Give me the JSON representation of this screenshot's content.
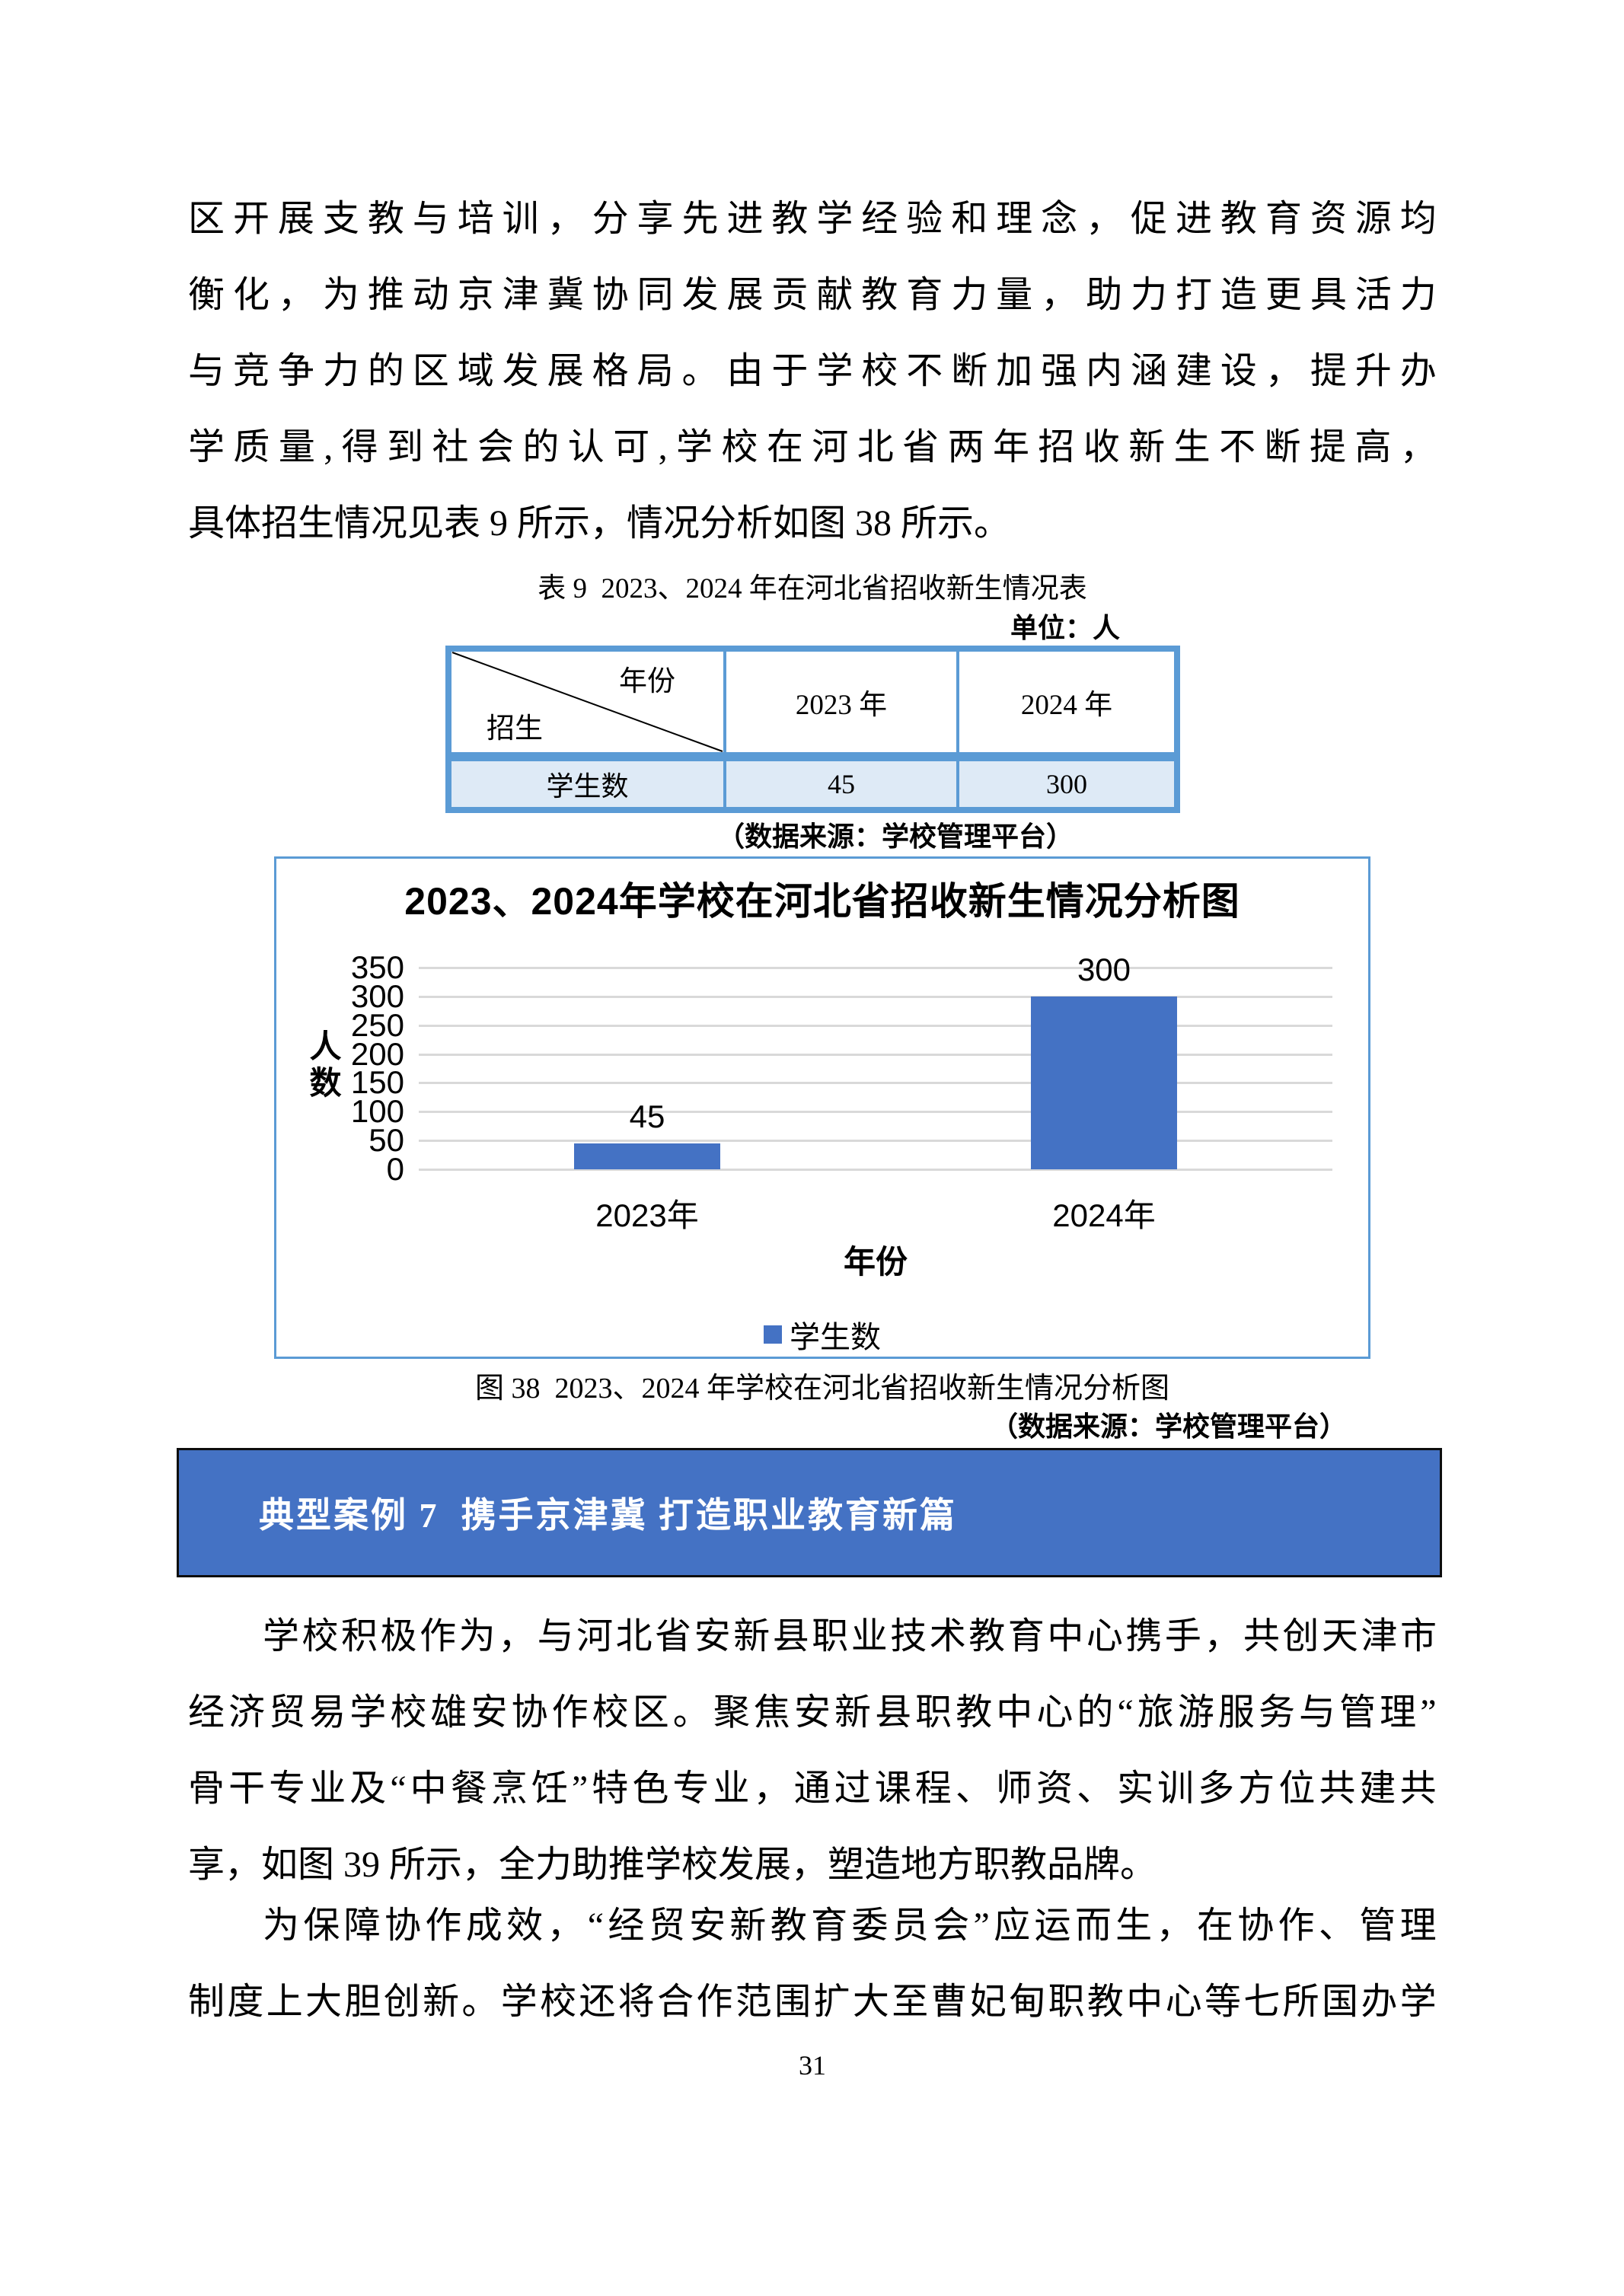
{
  "paragraphs": {
    "p1": {
      "lines": [
        "区开展支教与培训，分享先进教学经验和理念，促进教育资源均",
        "衡化，为推动京津冀协同发展贡献教育力量，助力打造更具活力",
        "与竞争力的区域发展格局。由于学校不断加强内涵建设，提升办",
        "学质量,得到社会的认可,学校在河北省两年招收新生不断提高，",
        "具体招生情况见表 9 所示，情况分析如图 38 所示。"
      ]
    },
    "p2": {
      "lines": [
        "学校积极作为，与河北省安新县职业技术教育中心携手，共创天津市",
        "经济贸易学校雄安协作校区。聚焦安新县职教中心的“旅游服务与管理”",
        "骨干专业及“中餐烹饪”特色专业，通过课程、师资、实训多方位共建共",
        "享，如图 39 所示，全力助推学校发展，塑造地方职教品牌。"
      ]
    },
    "p3": {
      "lines": [
        "为保障协作成效，“经贸安新教育委员会”应运而生，在协作、管理",
        "制度上大胆创新。学校还将合作范围扩大至曹妃甸职教中心等七所国办学"
      ]
    }
  },
  "table9": {
    "caption": "表 9  2023、2024 年在河北省招收新生情况表",
    "unit_note": "单位：人",
    "corner": {
      "top_right": "年份",
      "bottom_left": "招生"
    },
    "col_headers": [
      "2023 年",
      "2024 年"
    ],
    "row": {
      "label": "学生数",
      "v2023": "45",
      "v2024": "300"
    },
    "source_note": "（数据来源：学校管理平台）"
  },
  "figure38": {
    "caption": "图 38  2023、2024 年学校在河北省招收新生情况分析图",
    "source_note": "（数据来源：学校管理平台）"
  },
  "chart_data": {
    "type": "bar",
    "title": "2023、2024年学校在河北省招收新生情况分析图",
    "categories": [
      "2023年",
      "2024年"
    ],
    "series": [
      {
        "name": "学生数",
        "values": [
          45,
          300
        ]
      }
    ],
    "data_labels": [
      "45",
      "300"
    ],
    "xlabel": "年份",
    "ylabel": "人数",
    "ylim": [
      0,
      350
    ],
    "ytick_step": 50,
    "grid": true,
    "legend_position": "bottom",
    "bar_color": "#4472C4",
    "gridline_color": "#D9D9D9"
  },
  "case_banner": {
    "label": "典型案例 7  携手京津冀 打造职业教育新篇",
    "bg_color": "#4472C4",
    "text_color": "#FFFFFF"
  },
  "colors": {
    "table_border": "#5B9BD5",
    "table_row_fill": "#DEEAF6",
    "figure_border": "#5B9BD5"
  },
  "footer": {
    "page_number": "31"
  }
}
